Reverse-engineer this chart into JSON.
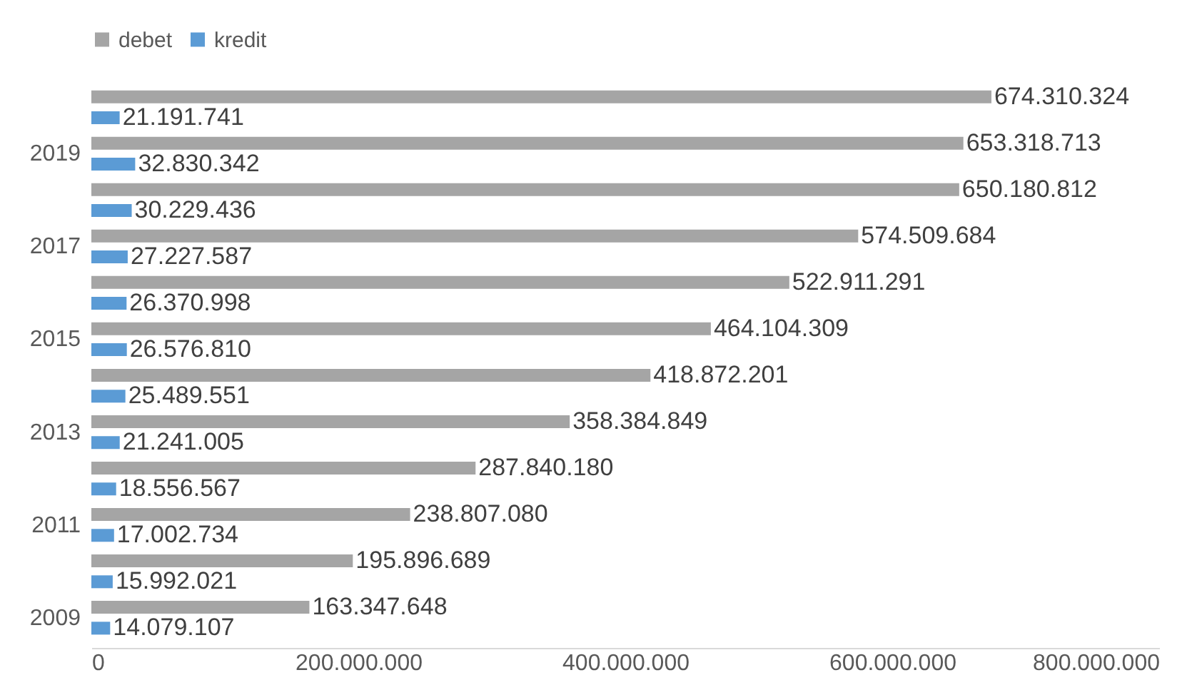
{
  "chart_data": {
    "type": "bar",
    "orientation": "horizontal",
    "categories": [
      null,
      "2019",
      null,
      "2017",
      null,
      "2015",
      null,
      "2013",
      null,
      "2011",
      null,
      "2009"
    ],
    "series": [
      {
        "name": "debet",
        "color": "#a5a5a5",
        "values": [
          674310324,
          653318713,
          650180812,
          574509684,
          522911291,
          464104309,
          418872201,
          358384849,
          287840180,
          238807080,
          195896689,
          163347648
        ],
        "value_labels": [
          "674.310.324",
          "653.318.713",
          "650.180.812",
          "574.509.684",
          "522.911.291",
          "464.104.309",
          "418.872.201",
          "358.384.849",
          "287.840.180",
          "238.807.080",
          "195.896.689",
          "163.347.648"
        ]
      },
      {
        "name": "kredit",
        "color": "#5b9bd5",
        "values": [
          21191741,
          32830342,
          30229436,
          27227587,
          26370998,
          26576810,
          25489551,
          21241005,
          18556567,
          17002734,
          15992021,
          14079107
        ],
        "value_labels": [
          "21.191.741",
          "32.830.342",
          "30.229.436",
          "27.227.587",
          "26.370.998",
          "26.576.810",
          "25.489.551",
          "21.241.005",
          "18.556.567",
          "17.002.734",
          "15.992.021",
          "14.079.107"
        ]
      }
    ],
    "xlim": [
      0,
      800000000
    ],
    "xticks": [
      0,
      {
        "value": 200000000,
        "label": "200.000.000"
      },
      {
        "value": 400000000,
        "label": "400.000.000"
      },
      {
        "value": 600000000,
        "label": "600.000.000"
      },
      {
        "value": 800000000,
        "label": "800.000.000"
      }
    ],
    "legend": "top",
    "grid": false
  }
}
